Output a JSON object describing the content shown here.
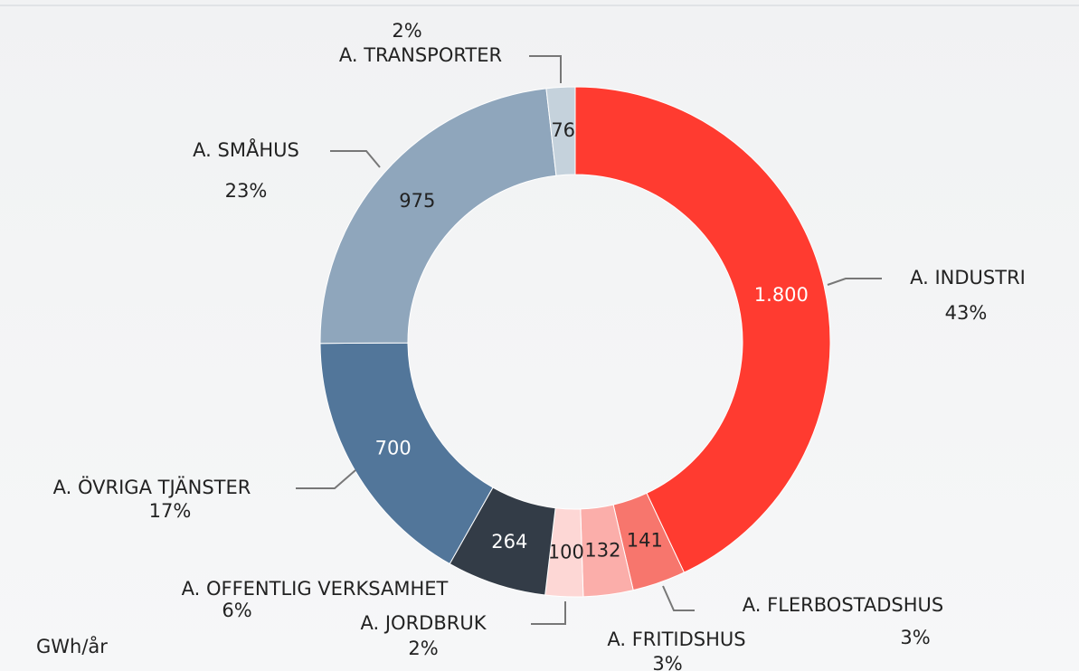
{
  "chart_data": {
    "type": "donut",
    "categories": [
      "A. INDUSTRI",
      "A. FLERBOSTADSHUS",
      "A. FRITIDSHUS",
      "A. JORDBRUK",
      "A. OFFENTLIG VERKSAMHET",
      "A. ÖVRIGA TJÄNSTER",
      "A. SMÅHUS",
      "A. TRANSPORTER"
    ],
    "values": [
      1800,
      141,
      132,
      100,
      264,
      700,
      975,
      76
    ],
    "value_labels": [
      "1.800",
      "141",
      "132",
      "100",
      "264",
      "700",
      "975",
      "76"
    ],
    "percent_labels": [
      "43%",
      "3%",
      "3%",
      "2%",
      "6%",
      "17%",
      "23%",
      "2%"
    ],
    "colors": [
      "#ff3b30",
      "#f7766d",
      "#fbaeaa",
      "#fdd7d5",
      "#333c47",
      "#52769a",
      "#8fa6bc",
      "#c5d2dc"
    ],
    "unit": "GWh/år"
  }
}
